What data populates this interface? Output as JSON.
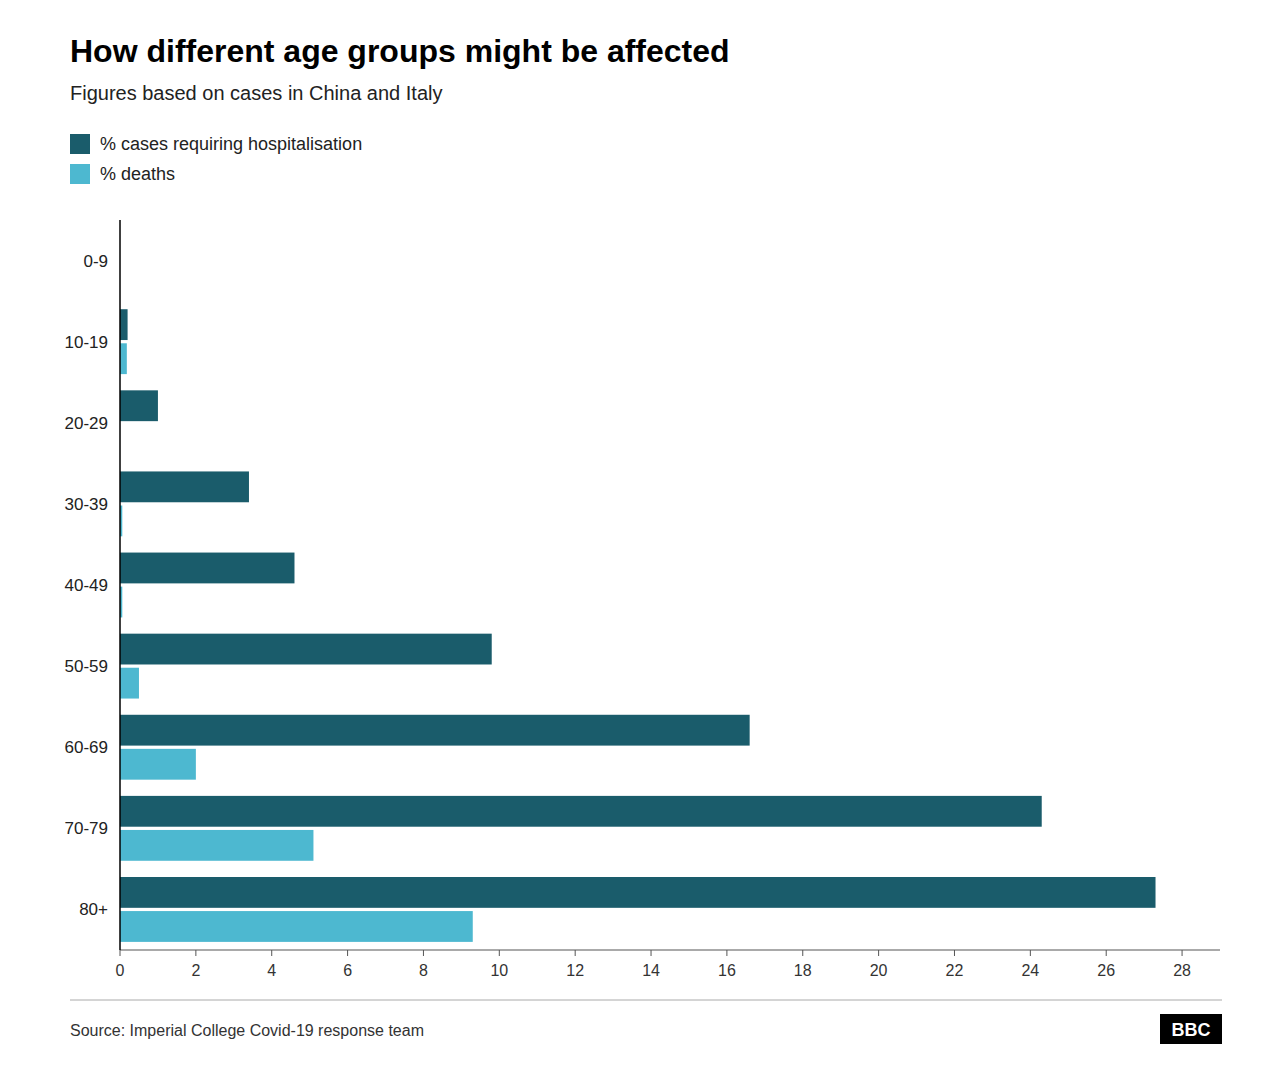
{
  "chart_data": {
    "type": "bar",
    "orientation": "horizontal",
    "title": "How different age groups might be affected",
    "subtitle": "Figures based on cases in China and Italy",
    "source": "Source: Imperial College Covid-19 response team",
    "annotations": [
      "BBC"
    ],
    "categories": [
      "0-9",
      "10-19",
      "20-29",
      "30-39",
      "40-49",
      "50-59",
      "60-69",
      "70-79",
      "80+"
    ],
    "series": [
      {
        "name": "% cases requiring hospitalisation",
        "color": "#1a5c6b",
        "values": [
          0.0,
          0.2,
          1.0,
          3.4,
          4.6,
          9.8,
          16.6,
          24.3,
          27.3
        ]
      },
      {
        "name": "% deaths",
        "color": "#4db8d0",
        "values": [
          0.0,
          0.18,
          0.0,
          0.06,
          0.06,
          0.5,
          2.0,
          5.1,
          9.3
        ]
      }
    ],
    "xlim": [
      0,
      29
    ],
    "xticks": [
      0,
      2,
      4,
      6,
      8,
      10,
      12,
      14,
      16,
      18,
      20,
      22,
      24,
      26,
      28
    ],
    "grid": false,
    "legend": "upper left"
  }
}
